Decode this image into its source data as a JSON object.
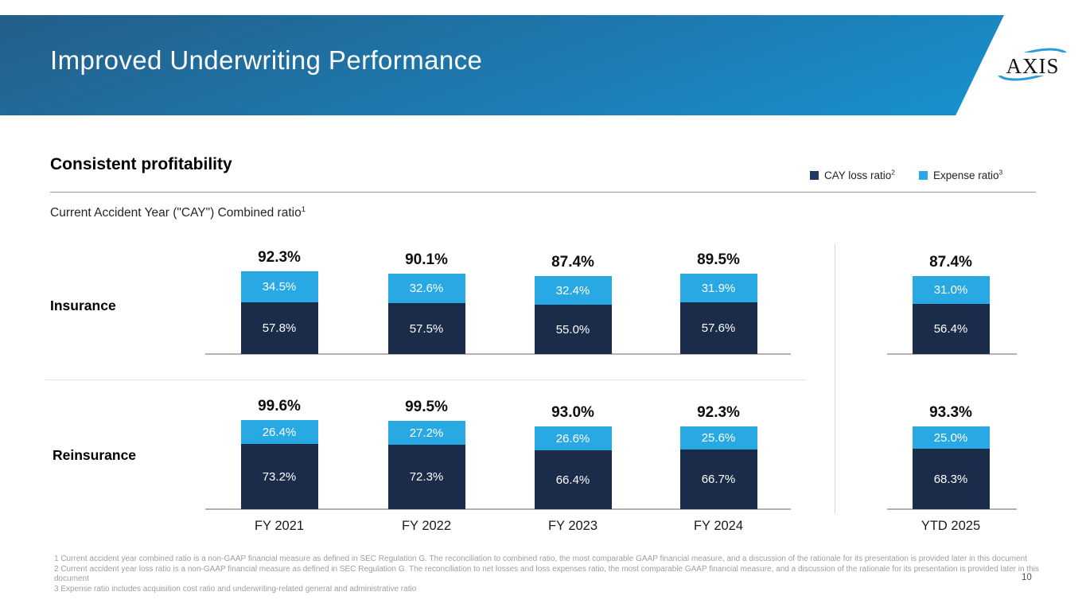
{
  "header": {
    "title": "Improved Underwriting Performance",
    "logo_text": "AXIS"
  },
  "section": {
    "heading": "Consistent profitability",
    "subtitle_main": "Current Accident Year (\"CAY\") Combined ratio",
    "subtitle_sup": "1"
  },
  "legend": [
    {
      "label": "CAY loss ratio",
      "sup": "2",
      "color": "#1e3a64"
    },
    {
      "label": "Expense ratio",
      "sup": "3",
      "color": "#29a9e3"
    }
  ],
  "chart_data": {
    "type": "bar",
    "stacked": true,
    "unit": "%",
    "grid": false,
    "legend_position": "top-right",
    "categories": [
      "FY 2021",
      "FY 2022",
      "FY 2023",
      "FY 2024",
      "YTD 2025"
    ],
    "colors": {
      "cay_loss_ratio": "#1b2c4b",
      "expense_ratio": "#29a9e3"
    },
    "rows": [
      {
        "label": "Insurance",
        "totals": [
          "92.3%",
          "90.1%",
          "87.4%",
          "89.5%",
          "87.4%"
        ],
        "series": [
          {
            "name": "CAY loss ratio",
            "values": [
              57.8,
              57.5,
              55.0,
              57.6,
              56.4
            ]
          },
          {
            "name": "Expense ratio",
            "values": [
              34.5,
              32.6,
              32.4,
              31.9,
              31.0
            ]
          }
        ]
      },
      {
        "label": "Reinsurance",
        "totals": [
          "99.6%",
          "99.5%",
          "93.0%",
          "92.3%",
          "93.3%"
        ],
        "series": [
          {
            "name": "CAY loss ratio",
            "values": [
              73.2,
              72.3,
              66.4,
              66.7,
              68.3
            ]
          },
          {
            "name": "Expense ratio",
            "values": [
              26.4,
              27.2,
              26.6,
              25.6,
              25.0
            ]
          }
        ]
      }
    ]
  },
  "footnotes": [
    "1 Current accident year combined ratio is a non-GAAP financial measure as defined in SEC Regulation G. The reconciliation to combined ratio, the most comparable GAAP financial measure, and a discussion of the rationale for its presentation is provided later in this document",
    "2 Current accident year loss ratio is a non-GAAP financial measure as defined in SEC Regulation G. The reconciliation to net losses and loss expenses ratio, the most comparable GAAP financial measure, and a discussion of the rationale for its presentation is provided later in this document",
    "3 Expense ratio includes acquisition cost ratio and underwriting-related general and administrative ratio"
  ],
  "page_number": "10"
}
